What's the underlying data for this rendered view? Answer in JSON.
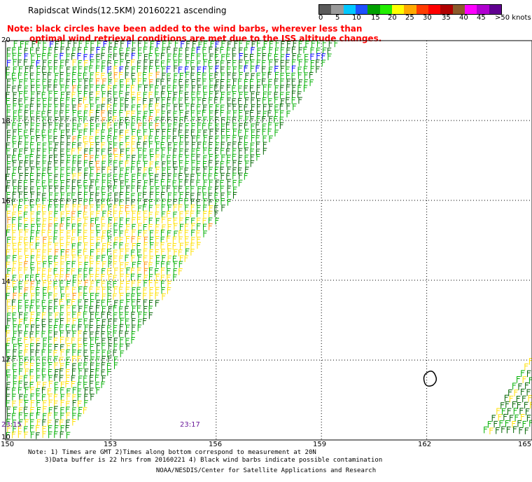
{
  "title": "Rapidscat Winds(12.5KM) 20160221 ascending",
  "colorbar": {
    "labels": [
      "0",
      "5",
      "10",
      "15",
      "20",
      "25",
      "30",
      "35",
      "40",
      "45",
      ">50 knots"
    ],
    "colors": [
      "#5a5a5a",
      "#9a9a9a",
      "#00c8ff",
      "#1e50ff",
      "#00a000",
      "#22ee00",
      "#ffff00",
      "#ffaa00",
      "#ff3c00",
      "#ff0000",
      "#b00000",
      "#8b5a2b",
      "#ff00ff",
      "#b000d0",
      "#600090"
    ]
  },
  "red_note": {
    "line1": "Note: black circles have been added to the wind barbs, wherever less than",
    "line2": "optimal wind retrieval conditions are met due to the ISS altitude changes."
  },
  "axes": {
    "lon_ticks": [
      "150",
      "153",
      "156",
      "159",
      "162",
      "165"
    ],
    "lat_ticks": [
      "20",
      "18",
      "16",
      "14",
      "12",
      "10"
    ],
    "lon_range": [
      150,
      165
    ],
    "lat_range": [
      10,
      20
    ]
  },
  "swath_times": [
    "23:15",
    "23:17"
  ],
  "bottom_note": {
    "line1": "Note: 1) Times are GMT 2)Times along bottom correspond to measurement at 20N",
    "line2": "3)Data buffer is 22 hrs from 20160221 4) Black wind barbs indicate possible contamination"
  },
  "credit": "NOAA/NESDIS/Center for Satellite Applications and Research",
  "legend_colors": {
    "barb_dark_green": "#006400",
    "barb_green": "#00b000",
    "barb_yellow": "#ffe000",
    "barb_blue": "#0000ff",
    "barb_orange": "#ff8c00",
    "time_text": "#6a1a9a",
    "note_red": "#ff0000"
  }
}
